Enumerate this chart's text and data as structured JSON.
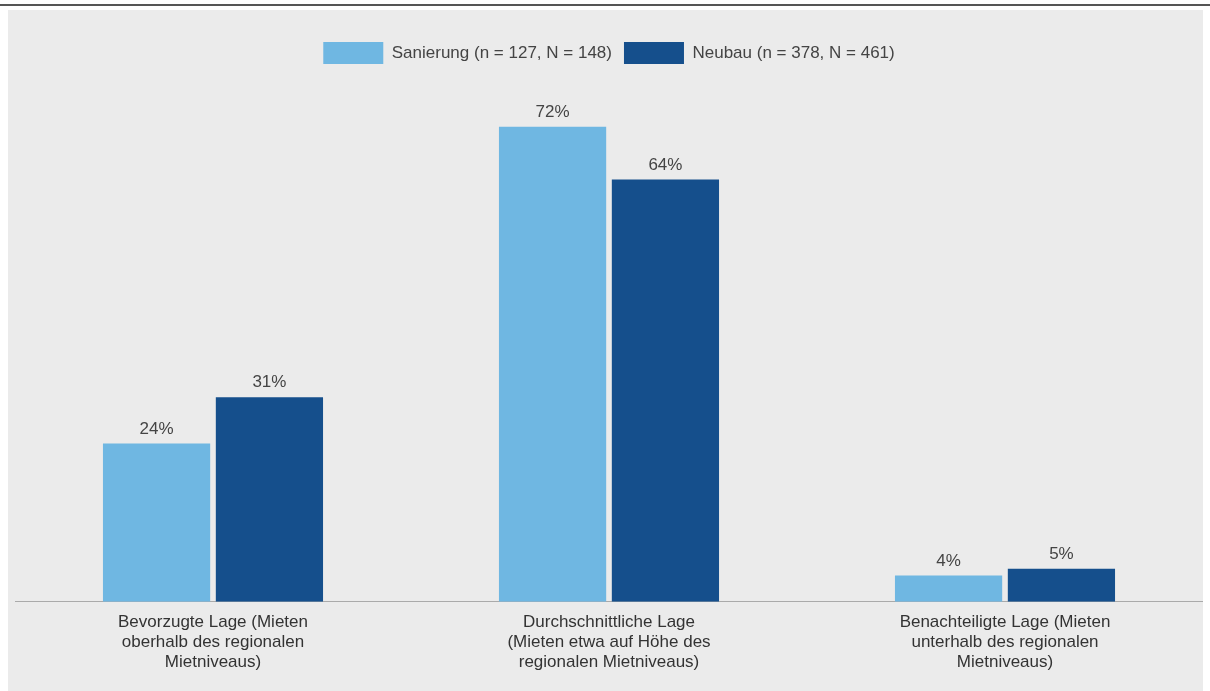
{
  "chart_data": {
    "type": "bar",
    "categories": [
      "Bevorzugte Lage (Mieten oberhalb des regionalen Mietniveaus)",
      "Durchschnittliche Lage (Mieten etwa auf Höhe des regionalen Mietniveaus)",
      "Benachteiligte Lage (Mieten unterhalb des regionalen Mietniveaus)"
    ],
    "series": [
      {
        "name": "Sanierung (n = 127, N = 148)",
        "color": "#6fb7e2",
        "values": [
          24,
          72,
          4
        ],
        "value_labels": [
          "24%",
          "72%",
          "4%"
        ]
      },
      {
        "name": "Neubau (n = 378, N = 461)",
        "color": "#154f8c",
        "values": [
          31,
          64,
          5
        ],
        "value_labels": [
          "31%",
          "64%",
          "5%"
        ]
      }
    ],
    "legend": "top",
    "tick_labels": "x",
    "grid": false
  }
}
